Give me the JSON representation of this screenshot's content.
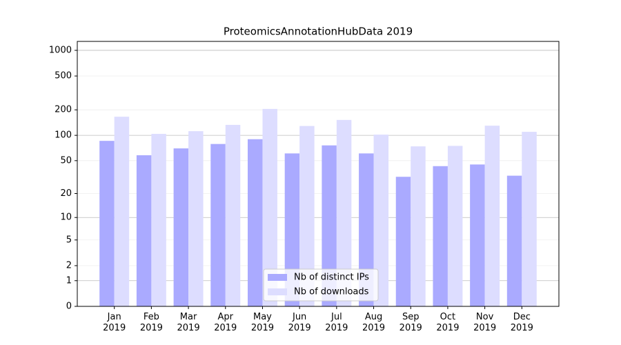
{
  "chart_data": {
    "type": "bar",
    "title": "ProteomicsAnnotationHubData 2019",
    "categories": [
      "Jan\n2019",
      "Feb\n2019",
      "Mar\n2019",
      "Apr\n2019",
      "May\n2019",
      "Jun\n2019",
      "Jul\n2019",
      "Aug\n2019",
      "Sep\n2019",
      "Oct\n2019",
      "Nov\n2019",
      "Dec\n2019"
    ],
    "series": [
      {
        "name": "Nb of distinct IPs",
        "color": "#aaaaff",
        "values": [
          86,
          58,
          70,
          79,
          90,
          61,
          76,
          61,
          32,
          43,
          45,
          33
        ]
      },
      {
        "name": "Nb of downloads",
        "color": "#ddddff",
        "values": [
          166,
          104,
          112,
          133,
          205,
          129,
          152,
          102,
          74,
          75,
          130,
          110
        ]
      }
    ],
    "yscale": "log1p",
    "ylim": [
      0,
      1273
    ],
    "yticks": [
      0,
      1,
      2,
      5,
      10,
      20,
      50,
      100,
      200,
      500,
      1000
    ],
    "grid": true,
    "legend": "lower center"
  }
}
